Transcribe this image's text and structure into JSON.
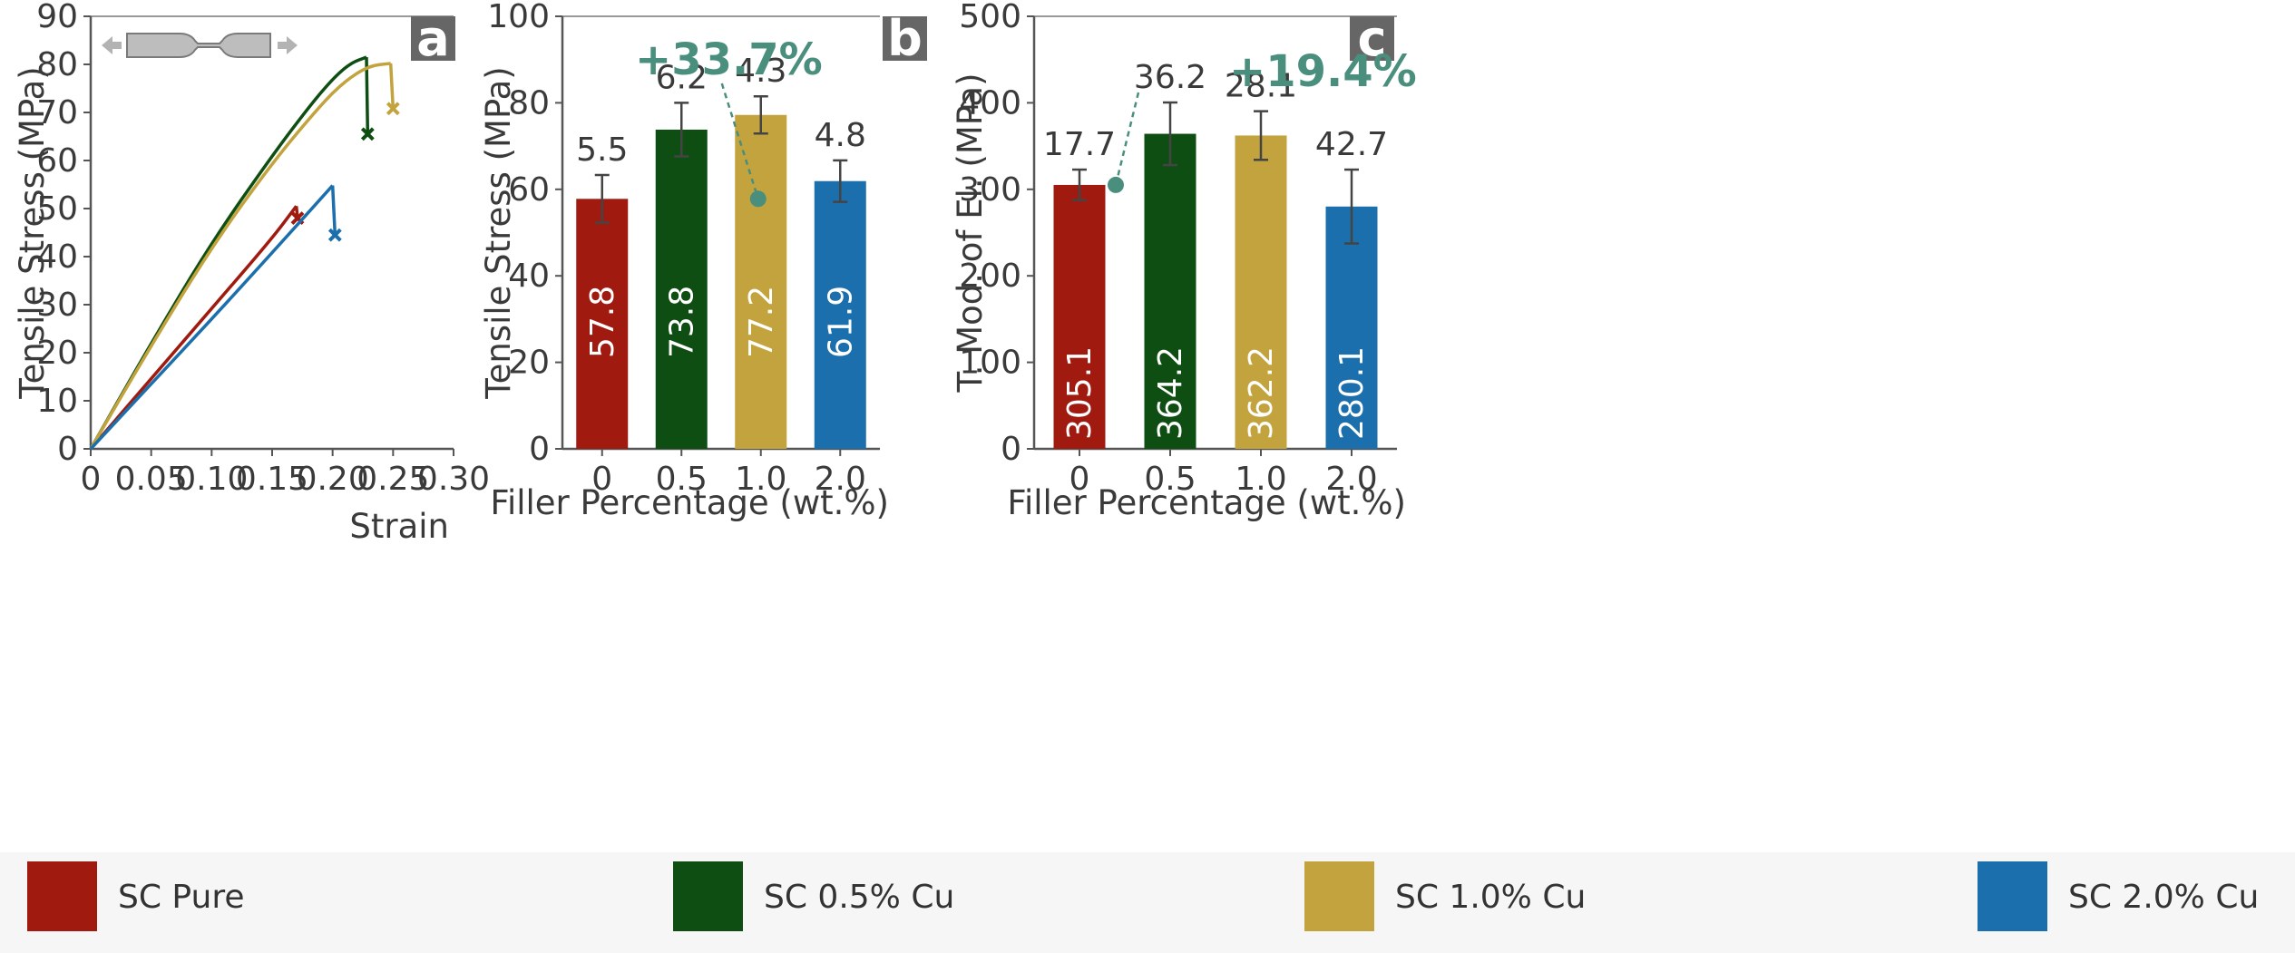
{
  "colors": {
    "pure": "#a01a10",
    "cu05": "#0f4e12",
    "cu10": "#c2a33d",
    "cu20": "#1a6fac",
    "accent": "#4a8f7d",
    "panel_label_bg": "#666666"
  },
  "specimen_icon": "dogbone-tensile-specimen-icon",
  "chart_data": [
    {
      "panel": "a",
      "type": "line",
      "xlabel": "Strain",
      "ylabel": "Tensile Stress (MPa)",
      "xlim": [
        0,
        0.3
      ],
      "ylim": [
        0,
        90
      ],
      "xticks": [
        "0",
        "0.05",
        "0.10",
        "0.15",
        "0.20",
        "0.25",
        "0.30"
      ],
      "yticks": [
        "0",
        "10",
        "20",
        "30",
        "40",
        "50",
        "60",
        "70",
        "80",
        "90"
      ],
      "series": [
        {
          "name": "SC Pure",
          "color_key": "pure",
          "points": [
            [
              0,
              0
            ],
            [
              0.05,
              14.6
            ],
            [
              0.1,
              29.2
            ],
            [
              0.15,
              43.8
            ],
            [
              0.17,
              50.5
            ]
          ],
          "fracture": [
            [
              0.17,
              50.5
            ],
            [
              0.171,
              48.0
            ]
          ]
        },
        {
          "name": "SC 0.5% Cu",
          "color_key": "cu05",
          "points": [
            [
              0,
              0
            ],
            [
              0.05,
              22
            ],
            [
              0.1,
              43
            ],
            [
              0.15,
              61
            ],
            [
              0.18,
              71
            ],
            [
              0.2,
              77
            ],
            [
              0.215,
              80.3
            ],
            [
              0.228,
              81.5
            ]
          ],
          "fracture": [
            [
              0.228,
              81.5
            ],
            [
              0.229,
              65.5
            ]
          ]
        },
        {
          "name": "SC 1.0% Cu",
          "color_key": "cu10",
          "points": [
            [
              0,
              0
            ],
            [
              0.05,
              21.5
            ],
            [
              0.1,
              42
            ],
            [
              0.15,
              59.5
            ],
            [
              0.19,
              71.5
            ],
            [
              0.21,
              76.5
            ],
            [
              0.23,
              79.7
            ],
            [
              0.248,
              80.2
            ]
          ],
          "fracture": [
            [
              0.248,
              80.2
            ],
            [
              0.25,
              70.8
            ]
          ]
        },
        {
          "name": "SC 2.0% Cu",
          "color_key": "cu20",
          "points": [
            [
              0,
              0
            ],
            [
              0.05,
              13.5
            ],
            [
              0.1,
              27
            ],
            [
              0.15,
              40.8
            ],
            [
              0.2,
              54.8
            ]
          ],
          "fracture": [
            [
              0.2,
              54.8
            ],
            [
              0.202,
              44.5
            ]
          ]
        }
      ]
    },
    {
      "panel": "b",
      "type": "bar",
      "xlabel": "Filler Percentage (wt.%)",
      "ylabel": "Tensile Stress (MPa)",
      "ylim": [
        0,
        100
      ],
      "yticks": [
        "0",
        "20",
        "40",
        "60",
        "80",
        "100"
      ],
      "categories": [
        "0",
        "0.5",
        "1.0",
        "2.0"
      ],
      "values": [
        57.8,
        73.8,
        77.2,
        61.9
      ],
      "errors": [
        5.5,
        6.2,
        4.3,
        4.8
      ],
      "value_labels": [
        "57.8",
        "73.8",
        "77.2",
        "61.9"
      ],
      "error_labels": [
        "5.5",
        "6.2",
        "4.3",
        "4.8"
      ],
      "color_keys": [
        "pure",
        "cu05",
        "cu10",
        "cu20"
      ],
      "annotation": {
        "text": "+33.7%",
        "ref_value": 57.8,
        "target_index": 2
      }
    },
    {
      "panel": "c",
      "type": "bar",
      "xlabel": "Filler Percentage (wt.%)",
      "ylabel": "T. Mod. of El. (MPa)",
      "ylim": [
        0,
        500
      ],
      "yticks": [
        "0",
        "100",
        "200",
        "300",
        "400",
        "500"
      ],
      "categories": [
        "0",
        "0.5",
        "1.0",
        "2.0"
      ],
      "values": [
        305.1,
        364.2,
        362.2,
        280.1
      ],
      "errors": [
        17.7,
        36.2,
        28.1,
        42.7
      ],
      "value_labels": [
        "305.1",
        "364.2",
        "362.2",
        "280.1"
      ],
      "error_labels": [
        "17.7",
        "36.2",
        "28.1",
        "42.7"
      ],
      "color_keys": [
        "pure",
        "cu05",
        "cu10",
        "cu20"
      ],
      "annotation": {
        "text": "+19.4%",
        "ref_value": 305.1,
        "target_index": 1
      }
    }
  ],
  "legend": [
    {
      "label": "SC Pure",
      "color_key": "pure"
    },
    {
      "label": "SC 0.5% Cu",
      "color_key": "cu05"
    },
    {
      "label": "SC 1.0% Cu",
      "color_key": "cu10"
    },
    {
      "label": "SC 2.0% Cu",
      "color_key": "cu20"
    }
  ]
}
